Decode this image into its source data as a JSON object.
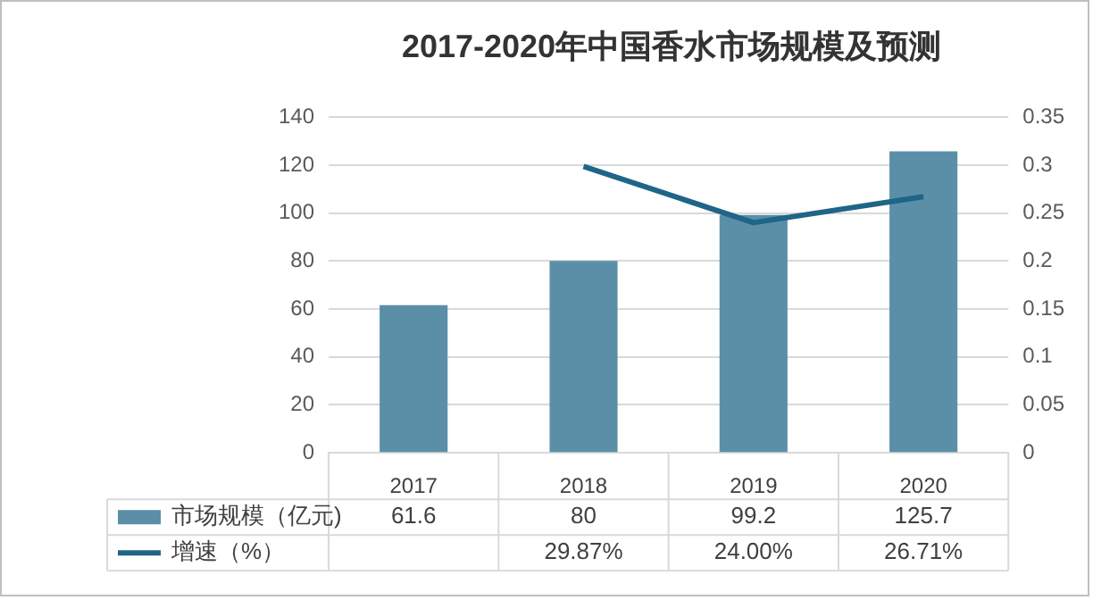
{
  "chart_data": {
    "type": "bar",
    "title": "2017-2020年中国香水市场规模及预测",
    "categories": [
      "2017",
      "2018",
      "2019",
      "2020"
    ],
    "series": [
      {
        "name": "市场规模（亿元)",
        "color": "#5b8fa8",
        "values": [
          61.6,
          80,
          99.2,
          125.7
        ],
        "value_labels": [
          "61.6",
          "80",
          "99.2",
          "125.7"
        ]
      },
      {
        "name": "增速（%）",
        "type": "line",
        "axis": "y2",
        "color": "#1f6587",
        "values": [
          null,
          0.2987,
          0.24,
          0.2671
        ],
        "value_labels": [
          null,
          "29.87%",
          "24.00%",
          "26.71%"
        ]
      }
    ],
    "ylim": [
      0,
      140
    ],
    "yticks": [
      0,
      20,
      40,
      60,
      80,
      100,
      120,
      140
    ],
    "y2lim": [
      0,
      0.35
    ],
    "y2ticks": [
      0,
      0.05,
      0.1,
      0.15,
      0.2,
      0.25,
      0.3,
      0.35
    ],
    "grid": "y",
    "legend": "bottom",
    "marker": "none",
    "line_style": "solid"
  }
}
